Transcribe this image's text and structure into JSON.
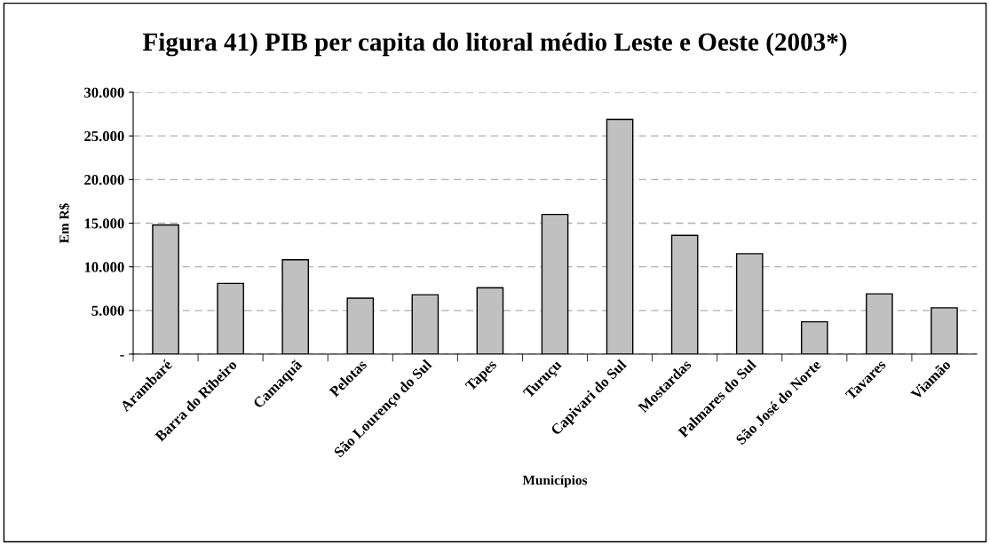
{
  "chart_data": {
    "type": "bar",
    "title": "Figura 41) PIB per capita do litoral médio Leste e Oeste (2003*)",
    "xlabel": "Municípios",
    "ylabel": "Em R$",
    "categories": [
      "Arambaré",
      "Barra do Ribeiro",
      "Camaquã",
      "Pelotas",
      "São Lourenço do Sul",
      "Tapes",
      "Turuçu",
      "Capivari do Sul",
      "Mostardas",
      "Palmares do Sul",
      "São José do Norte",
      "Tavares",
      "Viamão"
    ],
    "series": [
      {
        "color": "#c0c0c0",
        "values": [
          14800,
          8100,
          10800,
          6400,
          6800,
          7600,
          16000,
          26900,
          13600,
          11500,
          3700,
          6900,
          5300
        ]
      }
    ],
    "ylim": [
      0,
      30000
    ],
    "yticks": [
      {
        "value": 0,
        "label": "-"
      },
      {
        "value": 5000,
        "label": "5.000"
      },
      {
        "value": 10000,
        "label": "10.000"
      },
      {
        "value": 15000,
        "label": "15.000"
      },
      {
        "value": 20000,
        "label": "20.000"
      },
      {
        "value": 25000,
        "label": "25.000"
      },
      {
        "value": 30000,
        "label": "30.000"
      }
    ],
    "grid": "y"
  }
}
